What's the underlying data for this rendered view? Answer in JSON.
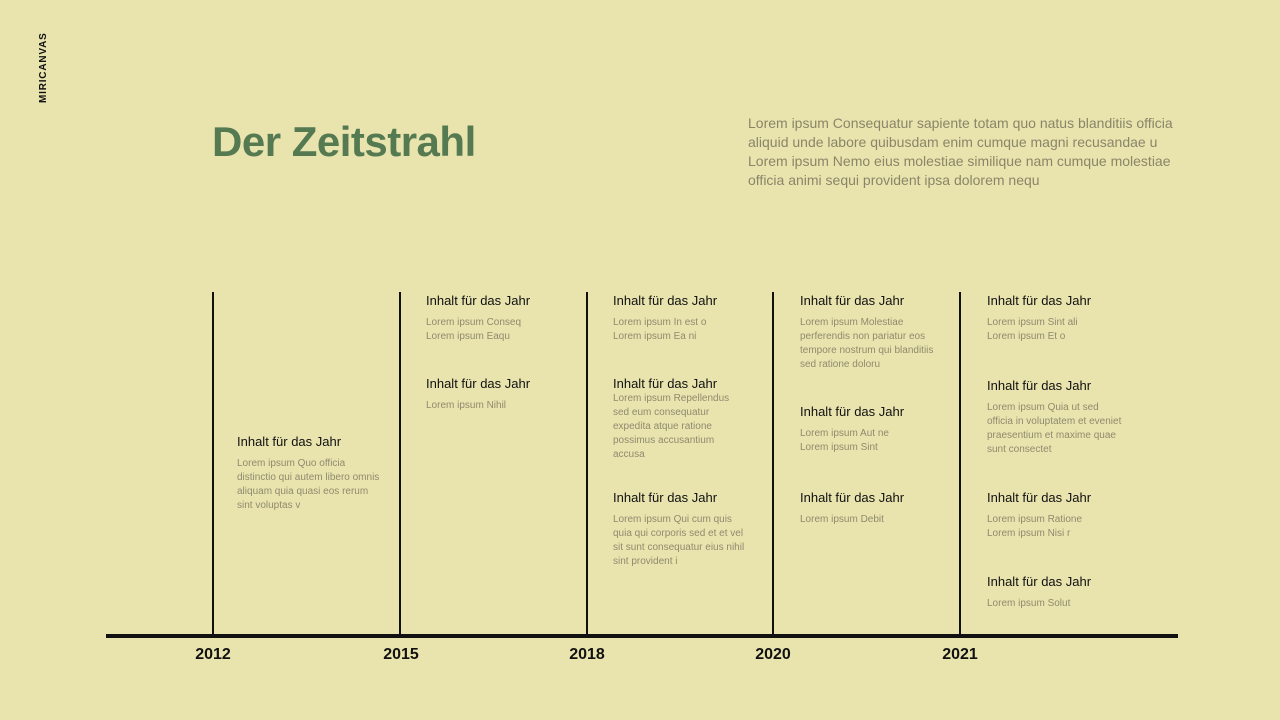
{
  "brand": "MIRICANVAS",
  "title": "Der Zeitstrahl",
  "intro": "Lorem ipsum Consequatur sapiente totam quo natus blanditiis officia aliquid unde labore quibusdam enim cumque magni recusandae u Lorem ipsum Nemo eius molestiae similique nam cumque molestiae officia animi sequi provident ipsa dolorem nequ",
  "years": [
    "2012",
    "2015",
    "2018",
    "2020",
    "2021"
  ],
  "entries": {
    "y2012": [
      {
        "title": "Inhalt für das Jahr",
        "text": "Lorem ipsum Quo officia distinctio qui autem libero omnis aliquam quia quasi eos rerum sint voluptas v"
      }
    ],
    "y2015": [
      {
        "title": "Inhalt für das Jahr",
        "text": "Lorem ipsum Conseq Lorem ipsum Eaqu"
      },
      {
        "title": "Inhalt für das Jahr",
        "text": "Lorem ipsum Nihil"
      }
    ],
    "y2018": [
      {
        "title": "Inhalt für das Jahr",
        "text": "Lorem ipsum In est o Lorem ipsum Ea ni"
      },
      {
        "title": "Inhalt für das Jahr",
        "text": "Lorem ipsum Repellendus sed eum consequatur expedita atque ratione possimus accusantium accusa"
      },
      {
        "title": "Inhalt für das Jahr",
        "text": "Lorem ipsum Qui cum quis quia qui corporis sed et et vel sit sunt consequatur eius nihil sint provident i"
      }
    ],
    "y2020": [
      {
        "title": "Inhalt für das Jahr",
        "text": "Lorem ipsum Molestiae perferendis non pariatur eos tempore nostrum qui blanditiis sed ratione doloru"
      },
      {
        "title": "Inhalt für das Jahr",
        "text": "Lorem ipsum Aut ne Lorem ipsum Sint"
      },
      {
        "title": "Inhalt für das Jahr",
        "text": "Lorem ipsum Debit"
      }
    ],
    "y2021": [
      {
        "title": "Inhalt für das Jahr",
        "text": "Lorem ipsum Sint ali Lorem ipsum Et o"
      },
      {
        "title": "Inhalt für das Jahr",
        "text": "Lorem ipsum Quia ut sed officia in voluptatem et eveniet praesentium et maxime quae sunt consectet"
      },
      {
        "title": "Inhalt für das Jahr",
        "text": "Lorem ipsum Ratione Lorem ipsum Nisi r"
      },
      {
        "title": "Inhalt für das Jahr",
        "text": "Lorem ipsum Solut"
      }
    ]
  }
}
